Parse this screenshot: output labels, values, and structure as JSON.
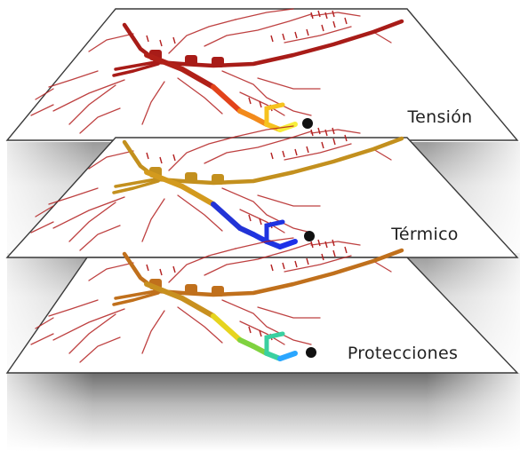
{
  "layers": [
    {
      "label": "Tensión",
      "colors": {
        "trunk": "#a81c18",
        "branch": "#b32020",
        "path": [
          "#b02018",
          "#e2431b",
          "#f28a1b",
          "#f6c21f",
          "#f7ee3a"
        ]
      }
    },
    {
      "label": "Térmico",
      "colors": {
        "trunk": "#c3901e",
        "branch": "#b32020",
        "path": [
          "#d39a1e",
          "#2233d6",
          "#1f33e0",
          "#1c30e8"
        ]
      }
    },
    {
      "label": "Protecciones",
      "colors": {
        "trunk": "#c0701c",
        "branch": "#b32020",
        "path": [
          "#c8901f",
          "#e6d41f",
          "#7fd23f",
          "#3ad0a0",
          "#2aa6ff"
        ]
      }
    }
  ],
  "colors": {
    "plane_fill": "#ffffff",
    "plane_stroke": "#3a3a3a",
    "gap_shadow": "#d5d5d5",
    "node": "#111111"
  }
}
